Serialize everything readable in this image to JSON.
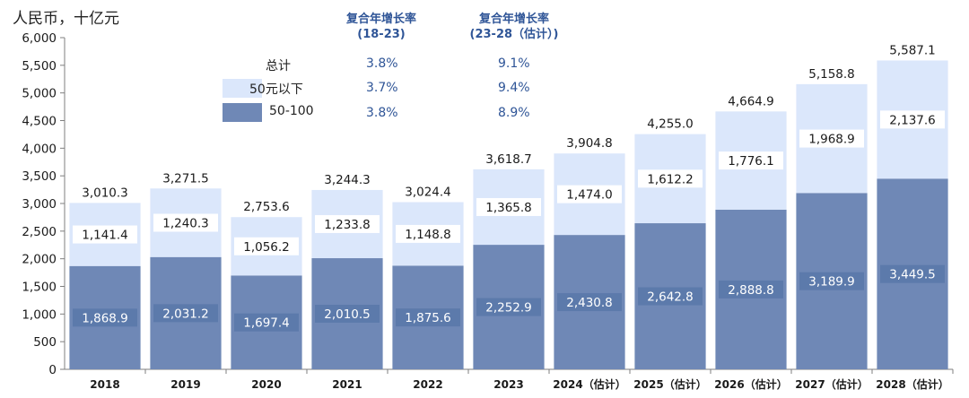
{
  "chart_data": {
    "type": "bar",
    "stacked": true,
    "unit_label": "人民币，十亿元",
    "categories": [
      "2018",
      "2019",
      "2020",
      "2021",
      "2022",
      "2023",
      "2024（估计）",
      "2025（估计）",
      "2026（估计）",
      "2027（估计）",
      "2028（估计）"
    ],
    "series": [
      {
        "name": "50-100",
        "color": "#6f88b6",
        "values": [
          1868.9,
          2031.2,
          1697.4,
          2010.5,
          1875.6,
          2252.9,
          2430.8,
          2642.8,
          2888.8,
          3189.9,
          3449.5
        ],
        "labels": [
          "1,868.9",
          "2,031.2",
          "1,697.4",
          "2,010.5",
          "1,875.6",
          "2,252.9",
          "2,430.8",
          "2,642.8",
          "2,888.8",
          "3,189.9",
          "3,449.5"
        ]
      },
      {
        "name": "50元以下",
        "color": "#dbe7fb",
        "values": [
          1141.4,
          1240.3,
          1056.2,
          1233.8,
          1148.8,
          1365.8,
          1474.0,
          1612.2,
          1776.1,
          1968.9,
          2137.6
        ],
        "labels": [
          "1,141.4",
          "1,240.3",
          "1,056.2",
          "1,233.8",
          "1,148.8",
          "1,365.8",
          "1,474.0",
          "1,612.2",
          "1,776.1",
          "1,968.9",
          "2,137.6"
        ]
      }
    ],
    "totals": [
      3010.3,
      3271.5,
      2753.6,
      3244.3,
      3024.4,
      3618.7,
      3904.8,
      4255.0,
      4664.9,
      5158.8,
      5587.1
    ],
    "total_labels": [
      "3,010.3",
      "3,271.5",
      "2,753.6",
      "3,244.3",
      "3,024.4",
      "3,618.7",
      "3,904.8",
      "4,255.0",
      "4,664.9",
      "5,158.8",
      "5,587.1"
    ],
    "ylim": [
      0,
      6000
    ],
    "yticks": [
      0,
      500,
      1000,
      1500,
      2000,
      2500,
      3000,
      3500,
      4000,
      4500,
      5000,
      5500,
      6000
    ],
    "ytick_labels": [
      "0",
      "500",
      "1,000",
      "1,500",
      "2,000",
      "2,500",
      "3,000",
      "3,500",
      "4,000",
      "4,500",
      "5,000",
      "5,500",
      "6,000"
    ],
    "grid": false,
    "legend_position": "top-left"
  },
  "legend": {
    "total_label": "总计",
    "items": [
      {
        "label": "50元以下",
        "color": "#dbe7fb"
      },
      {
        "label": "50-100",
        "color": "#6f88b6"
      }
    ]
  },
  "cagr": {
    "col1": {
      "line1": "复合年增长率",
      "line2": "(18-23)",
      "values": [
        "3.8%",
        "3.7%",
        "3.8%"
      ]
    },
    "col2": {
      "line1": "复合年增长率",
      "line2": "(23-28（估计）)",
      "values": [
        "9.1%",
        "9.4%",
        "8.9%"
      ]
    }
  },
  "colors": {
    "accent_text": "#2f5597",
    "axis": "#7f7f7f"
  }
}
